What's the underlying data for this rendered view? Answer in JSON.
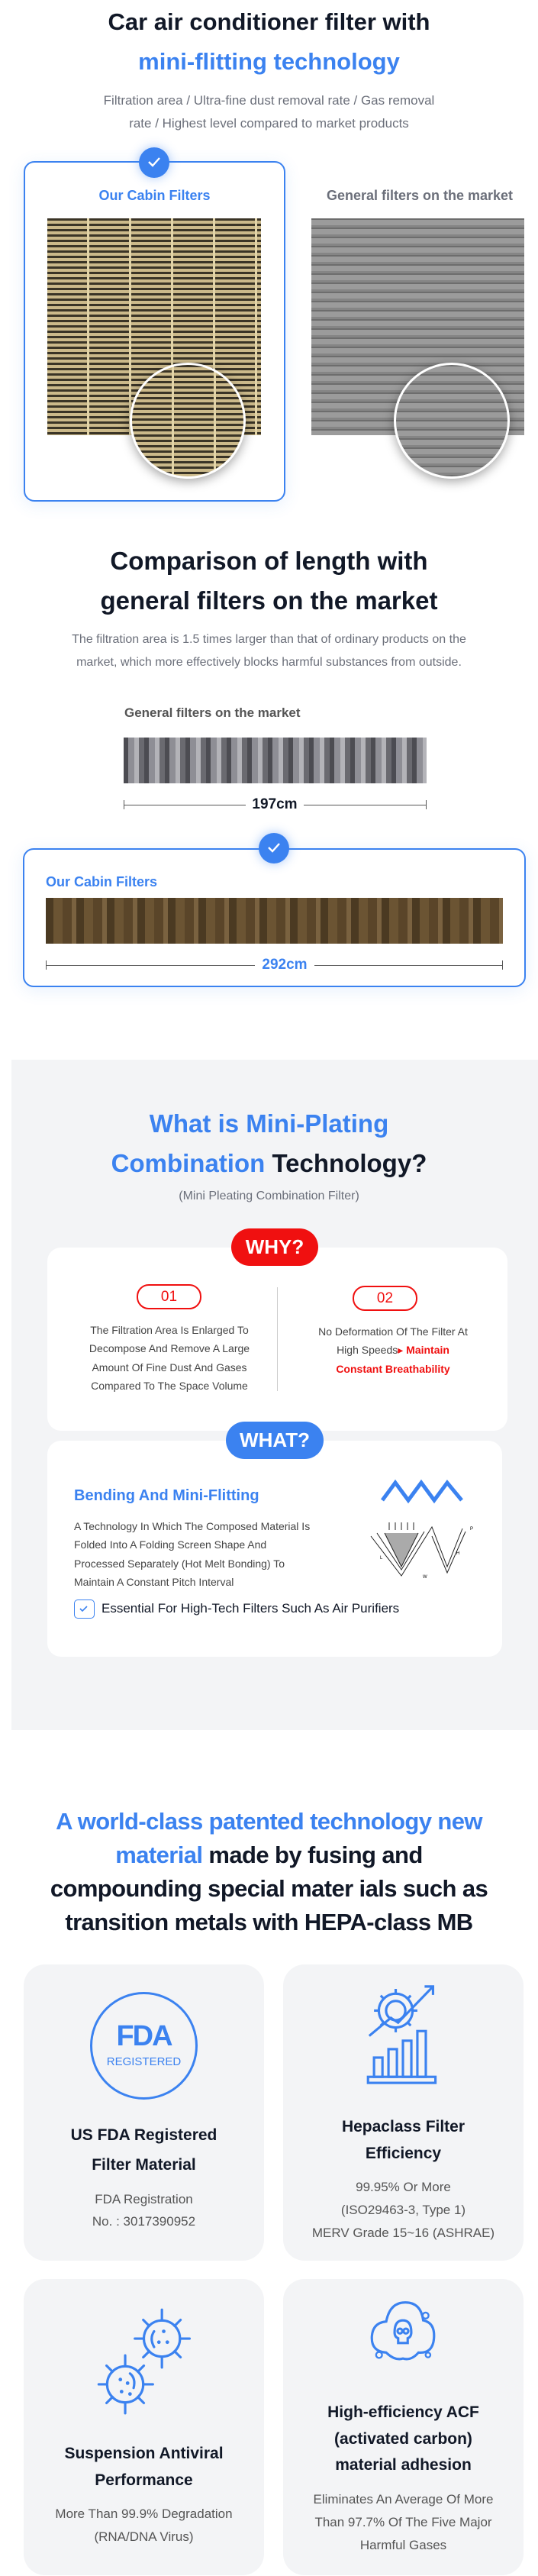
{
  "section1": {
    "title_line1": "Car air conditioner filter with",
    "title_line2": "mini-flitting technology",
    "subtitle_line1": "Filtration area / Ultra-fine dust removal rate / Gas removal",
    "subtitle_line2": "rate / Highest level compared to market products",
    "our_label": "Our Cabin Filters",
    "general_label": "General filters on the market"
  },
  "section2": {
    "title_line1": "Comparison of length with",
    "title_line2": "general filters on the market",
    "para_line1": "The filtration area is 1.5 times larger than that of ordinary products on the",
    "para_line2": "market, which more effectively blocks harmful substances from outside.",
    "general_label": "General filters on the market",
    "general_length": "197cm",
    "our_label": "Our Cabin Filters",
    "our_length": "292cm"
  },
  "section3": {
    "title_blue1": "What is Mini-Plating",
    "title_blue2": "Combination",
    "title_dark": "Technology?",
    "subtitle": "(Mini Pleating Combination Filter)",
    "why_label": "WHY?",
    "why_items": [
      {
        "num": "01",
        "lines": [
          "The Filtration Area Is Enlarged To",
          "Decompose And Remove A Large",
          "Amount Of Fine Dust And Gases",
          "Compared To The Space Volume"
        ]
      },
      {
        "num": "02",
        "line1": "No Deformation Of The Filter At",
        "line2_plain": "High Speeds",
        "line2_red": "Maintain",
        "line3_red": "Constant Breathability"
      }
    ],
    "what_label": "WHAT?",
    "what_title": "Bending And Mini-Flitting",
    "what_lines": [
      "A Technology In Which The Composed Material Is",
      "Folded Into A Folding Screen Shape And",
      "Processed Separately (Hot Melt Bonding) To",
      "Maintain A Constant Pitch Interval"
    ],
    "check_text": "Essential For High-Tech Filters Such As Air Purifiers",
    "diagram_labels": [
      "L",
      "H",
      "W",
      "P"
    ]
  },
  "section4": {
    "title_blue_line1": "A world-class patented technology new",
    "title_blue_line2": "material",
    "title_dark_line2": " made by fusing and",
    "title_line3": "compounding special mater ials such as",
    "title_line4": "transition metals with HEPA-class MB",
    "features": [
      {
        "icon": "fda-registered-icon",
        "logo_text": "FDA",
        "logo_sub": "REGISTERED",
        "title": [
          "US FDA Registered",
          "Filter Material"
        ],
        "desc": [
          "FDA Registration",
          "No. : 3017390952"
        ]
      },
      {
        "icon": "gear-chart-icon",
        "title": [
          "Hepaclass Filter",
          "Efficiency"
        ],
        "desc": [
          "99.95%  Or More",
          "(ISO29463-3, Type 1)",
          "MERV Grade 15~16 (ASHRAE)"
        ]
      },
      {
        "icon": "virus-icon",
        "title": [
          "Suspension  Antiviral",
          "Performance"
        ],
        "desc": [
          "More Than 99.9% Degradation",
          "(RNA/DNA Virus)"
        ]
      },
      {
        "icon": "toxic-cloud-icon",
        "title": [
          "High-efficiency ACF",
          "(activated carbon)",
          "material adhesion"
        ],
        "desc": [
          "Eliminates An Average Of More",
          "Than 97.7% Of The Five Major",
          "Harmful Gases"
        ]
      }
    ]
  },
  "colors": {
    "accent": "#3b82f0",
    "red": "#f01010",
    "gray_bg": "#f3f4f6"
  }
}
